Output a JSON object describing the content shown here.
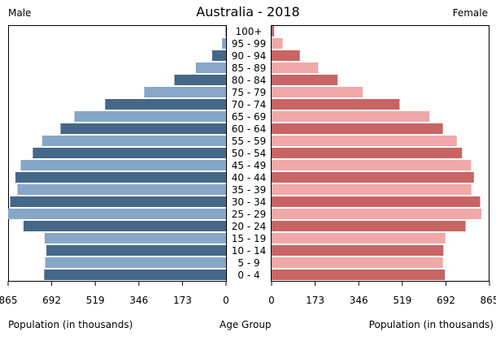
{
  "chart_data": {
    "type": "bar",
    "title": "Australia - 2018",
    "left_label": "Male",
    "right_label": "Female",
    "xlabel_left": "Population (in thousands)",
    "xlabel_center": "Age Group",
    "xlabel_right": "Population (in thousands)",
    "xlim": [
      0,
      865
    ],
    "ticks": [
      865,
      692,
      519,
      346,
      173,
      0
    ],
    "categories": [
      "100+",
      "95 - 99",
      "90 - 94",
      "85 - 89",
      "80 - 84",
      "75 - 79",
      "70 - 74",
      "65 - 69",
      "60 - 64",
      "55 - 59",
      "50 - 54",
      "45 - 49",
      "40 - 44",
      "35 - 39",
      "30 - 34",
      "25 - 29",
      "20 - 24",
      "15 - 19",
      "10 - 14",
      "5 - 9",
      "0 - 4"
    ],
    "series": [
      {
        "name": "Male",
        "values": [
          2,
          16,
          55,
          120,
          205,
          325,
          480,
          602,
          657,
          730,
          767,
          815,
          836,
          828,
          857,
          865,
          804,
          720,
          713,
          718,
          722
        ]
      },
      {
        "name": "Female",
        "values": [
          10,
          44,
          112,
          185,
          262,
          362,
          508,
          627,
          680,
          735,
          756,
          792,
          803,
          793,
          828,
          833,
          770,
          690,
          682,
          680,
          688
        ]
      }
    ],
    "colors": {
      "male_dark": "#456888",
      "male_light": "#87a7c9",
      "female_dark": "#c86464",
      "female_light": "#f0a8a8"
    },
    "grid": false
  }
}
